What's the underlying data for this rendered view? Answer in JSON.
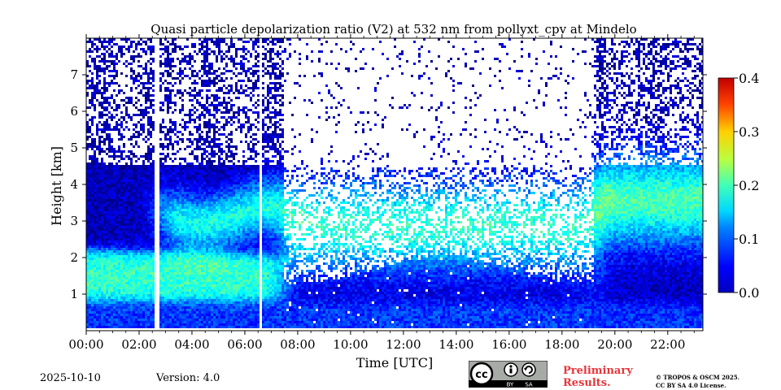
{
  "chart_data": {
    "type": "heatmap",
    "title": "Quasi particle depolarization ratio (V2) at 532 nm from pollyxt_cpv at Mindelo",
    "xlabel": "Time [UTC]",
    "ylabel": "Height [km]",
    "xlim": [
      0,
      23.33
    ],
    "ylim": [
      0,
      8
    ],
    "x_ticks": [
      "00:00",
      "02:00",
      "04:00",
      "06:00",
      "08:00",
      "10:00",
      "12:00",
      "14:00",
      "16:00",
      "18:00",
      "20:00",
      "22:00"
    ],
    "x_tick_values": [
      0,
      2,
      4,
      6,
      8,
      10,
      12,
      14,
      16,
      18,
      20,
      22
    ],
    "y_ticks": [
      "1",
      "2",
      "3",
      "4",
      "5",
      "6",
      "7"
    ],
    "y_tick_values": [
      1,
      2,
      3,
      4,
      5,
      6,
      7
    ],
    "colorbar": {
      "min": 0.0,
      "max": 0.4,
      "ticks": [
        "0.0",
        "0.1",
        "0.2",
        "0.3",
        "0.4"
      ],
      "tick_values": [
        0.0,
        0.1,
        0.2,
        0.3,
        0.4
      ],
      "colormap": "jet"
    },
    "data_gaps_utc": [
      [
        2.55,
        2.72
      ],
      [
        6.48,
        6.62
      ]
    ],
    "layers": [
      {
        "name": "near-surface",
        "time_range": [
          0,
          23.33
        ],
        "height_range_km": [
          0,
          0.8
        ],
        "depol": 0.05
      },
      {
        "name": "lofted dust layer (night)",
        "time_range": [
          0,
          7.5
        ],
        "height_range_km": [
          0.8,
          2.3
        ],
        "depol": 0.17
      },
      {
        "name": "mid-level aerosol layer",
        "time_range": [
          2.8,
          7.5
        ],
        "height_range_km": [
          2.5,
          4.5
        ],
        "depol": 0.15
      },
      {
        "name": "daytime noisy layer",
        "time_range": [
          7.5,
          19.2
        ],
        "height_range_km": [
          1.2,
          4.5
        ],
        "depol": 0.17
      },
      {
        "name": "evening dust layer",
        "time_range": [
          19.2,
          23.33
        ],
        "height_range_km": [
          2.2,
          5.0
        ],
        "depol": 0.21
      },
      {
        "name": "free troposphere (night)",
        "time_range": [
          0,
          7.5
        ],
        "height_range_km": [
          4.5,
          8.0
        ],
        "depol": 0.02
      }
    ]
  },
  "footer": {
    "date": "2025-10-10",
    "version": "Version: 4.0",
    "preliminary": [
      "Preliminary",
      "Results."
    ],
    "copyright": [
      "© TROPOS & OSCM 2025.",
      "CC BY SA 4.0 License."
    ],
    "license_labels": [
      "BY",
      "SA"
    ]
  },
  "colors": {
    "background": "#ffffff",
    "preliminary_text": "#e8353a",
    "badge_bg": "#a8aaa8",
    "badge_band": "#000000"
  }
}
